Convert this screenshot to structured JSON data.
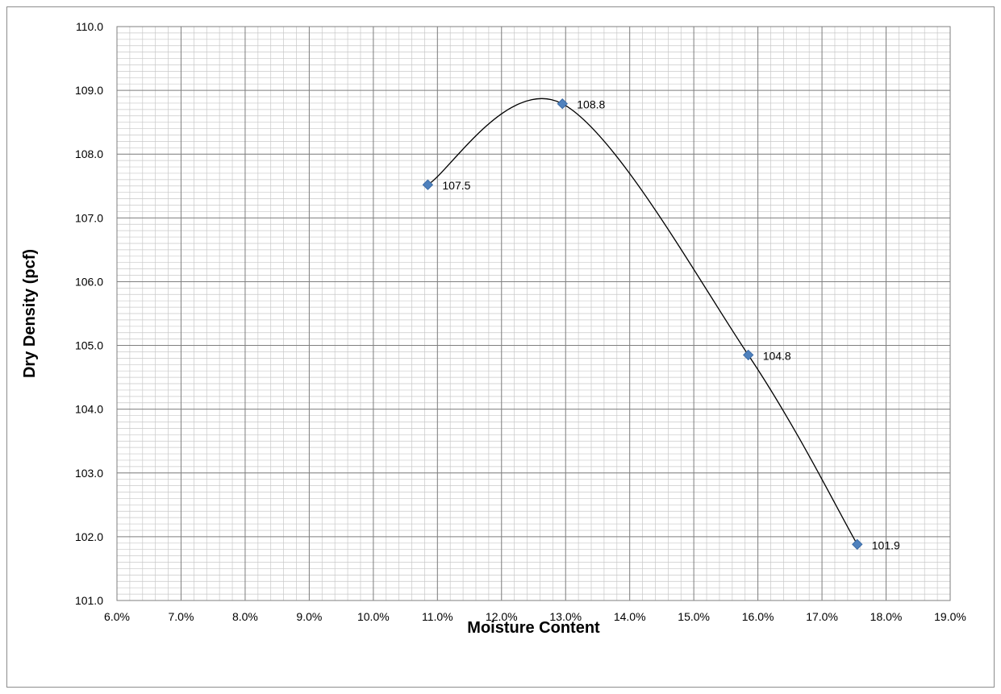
{
  "chart_data": {
    "type": "scatter",
    "title": "",
    "xlabel": "Moisture Content",
    "ylabel": "Dry Density (pcf)",
    "xlim": [
      6.0,
      19.0
    ],
    "ylim": [
      101.0,
      110.0
    ],
    "x_ticks": [
      "6.0%",
      "7.0%",
      "8.0%",
      "9.0%",
      "10.0%",
      "11.0%",
      "12.0%",
      "13.0%",
      "14.0%",
      "15.0%",
      "16.0%",
      "17.0%",
      "18.0%",
      "19.0%"
    ],
    "y_ticks": [
      "101.0",
      "102.0",
      "103.0",
      "104.0",
      "105.0",
      "106.0",
      "107.0",
      "108.0",
      "109.0",
      "110.0"
    ],
    "grid": true,
    "minor_grid": true,
    "legend": "none",
    "marker": "diamond",
    "marker_color": "#4f81bd",
    "line_color": "#000000",
    "trendline": "smooth curve through points",
    "points": [
      {
        "x": 10.85,
        "y": 107.52,
        "label": "107.5"
      },
      {
        "x": 12.95,
        "y": 108.79,
        "label": "108.8"
      },
      {
        "x": 15.85,
        "y": 104.85,
        "label": "104.8"
      },
      {
        "x": 17.55,
        "y": 101.88,
        "label": "101.9"
      }
    ]
  }
}
